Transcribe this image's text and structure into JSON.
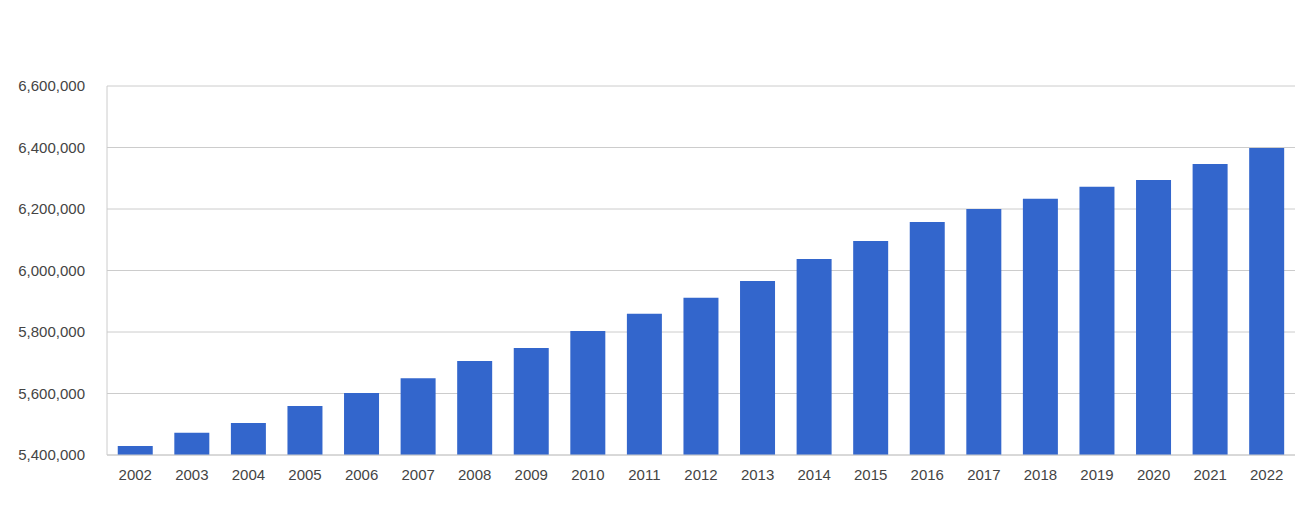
{
  "chart_data": {
    "type": "bar",
    "categories": [
      "2002",
      "2003",
      "2004",
      "2005",
      "2006",
      "2007",
      "2008",
      "2009",
      "2010",
      "2011",
      "2012",
      "2013",
      "2014",
      "2015",
      "2016",
      "2017",
      "2018",
      "2019",
      "2020",
      "2021",
      "2022"
    ],
    "values": [
      5429000,
      5472000,
      5504000,
      5559000,
      5602000,
      5650000,
      5706000,
      5748000,
      5803000,
      5859000,
      5911000,
      5966000,
      6037000,
      6096000,
      6158000,
      6200000,
      6233000,
      6272000,
      6294000,
      6346000,
      6398000
    ],
    "color": "#3366cc",
    "ylim": [
      5400000,
      6600000
    ],
    "yticks": [
      {
        "value": 5400000,
        "label": "5,400,000"
      },
      {
        "value": 5600000,
        "label": "5,600,000"
      },
      {
        "value": 5800000,
        "label": "5,800,000"
      },
      {
        "value": 6000000,
        "label": "6,000,000"
      },
      {
        "value": 6200000,
        "label": "6,200,000"
      },
      {
        "value": 6400000,
        "label": "6,400,000"
      },
      {
        "value": 6600000,
        "label": "6,600,000"
      }
    ],
    "grid": true
  }
}
